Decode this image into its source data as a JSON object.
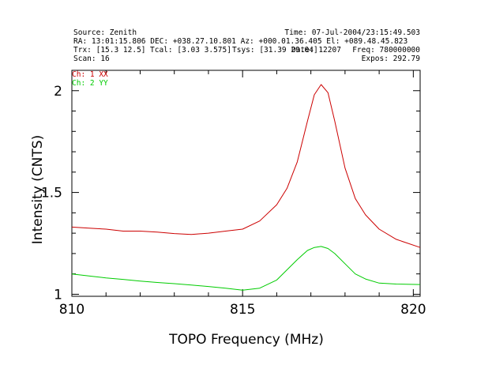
{
  "header": {
    "source": "Source: Zenith",
    "time": "Time: 07-Jul-2004/23:15:49.503",
    "position": "RA: 13:01:15.806 DEC: +038.27.10.801  Az: +000.01.36.405 El: +089.48.45.823",
    "trx": "Trx: [15.3 12.5]",
    "tcal": "Tcal: [3.03 3.575]",
    "tsys": "Tsys: [31.39 29.04]",
    "date": "Date: 12207",
    "freq": "Freq: 780000000",
    "scan": "Scan: 16",
    "expos": "Expos: 292.79"
  },
  "chart_data": {
    "type": "line",
    "xlabel": "TOPO Frequency (MHz)",
    "ylabel": "Intensity (CNTS)",
    "xlim": [
      810,
      820.2
    ],
    "ylim": [
      0.99,
      2.1
    ],
    "xticks": [
      810,
      815,
      820
    ],
    "xtick_labels": [
      "810",
      "815",
      "820"
    ],
    "yticks": [
      1,
      1.5,
      2
    ],
    "ytick_labels": [
      "1",
      "1.5",
      "2"
    ],
    "x": [
      810.0,
      810.5,
      811.0,
      811.5,
      812.0,
      812.5,
      813.0,
      813.5,
      814.0,
      814.5,
      815.0,
      815.5,
      816.0,
      816.3,
      816.6,
      816.9,
      817.1,
      817.3,
      817.5,
      817.7,
      818.0,
      818.3,
      818.6,
      819.0,
      819.5,
      820.2
    ],
    "series": [
      {
        "name": "Ch: 1 XX",
        "color": "#cc0000",
        "values": [
          1.33,
          1.325,
          1.32,
          1.31,
          1.31,
          1.305,
          1.298,
          1.294,
          1.3,
          1.31,
          1.32,
          1.36,
          1.44,
          1.52,
          1.65,
          1.85,
          1.98,
          2.03,
          1.99,
          1.85,
          1.62,
          1.47,
          1.39,
          1.32,
          1.27,
          1.23
        ]
      },
      {
        "name": "Ch: 2 YY",
        "color": "#00cc00",
        "values": [
          1.1,
          1.09,
          1.08,
          1.073,
          1.065,
          1.058,
          1.052,
          1.045,
          1.038,
          1.03,
          1.02,
          1.03,
          1.07,
          1.12,
          1.17,
          1.215,
          1.23,
          1.235,
          1.225,
          1.2,
          1.15,
          1.1,
          1.075,
          1.055,
          1.05,
          1.048
        ]
      }
    ]
  }
}
